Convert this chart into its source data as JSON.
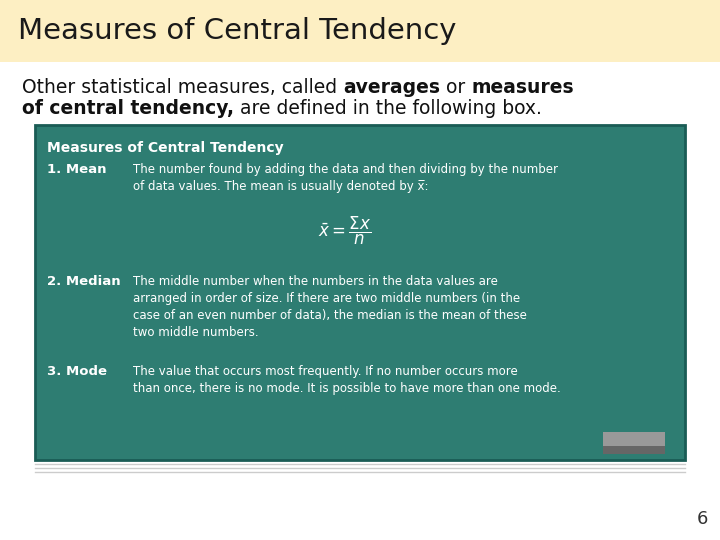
{
  "title": "Measures of Central Tendency",
  "title_bg": "#FDEFC3",
  "body_bg": "#FFFFFF",
  "page_number": "6",
  "box_bg": "#2E7D72",
  "box_border": "#1A5C55",
  "box_title": "Measures of Central Tendency",
  "eraser_color": "#999999",
  "lines_color": "#CCCCCC",
  "fig_w": 7.2,
  "fig_h": 5.4,
  "dpi": 100
}
